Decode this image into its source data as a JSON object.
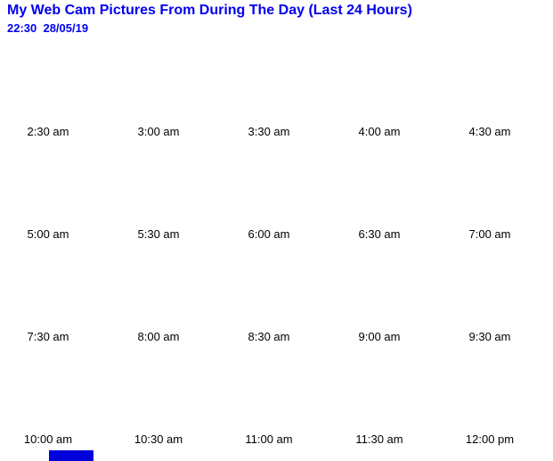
{
  "page": {
    "title": "My Web Cam Pictures From During The Day (Last 24 Hours)",
    "timestamp": "22:30  28/05/19"
  },
  "colors": {
    "accent_blue": "#0000ee",
    "caption_text": "#000000",
    "partial_image_blue": "#0000dd",
    "background": "#ffffff"
  },
  "grid": {
    "rows": [
      {
        "cells": [
          "2:30 am",
          "3:00 am",
          "3:30 am",
          "4:00 am",
          "4:30 am"
        ]
      },
      {
        "cells": [
          "5:00 am",
          "5:30 am",
          "6:00 am",
          "6:30 am",
          "7:00 am"
        ]
      },
      {
        "cells": [
          "7:30 am",
          "8:00 am",
          "8:30 am",
          "9:00 am",
          "9:30 am"
        ]
      },
      {
        "cells": [
          "10:00 am",
          "10:30 am",
          "11:00 am",
          "11:30 am",
          "12:00 pm"
        ]
      }
    ]
  }
}
